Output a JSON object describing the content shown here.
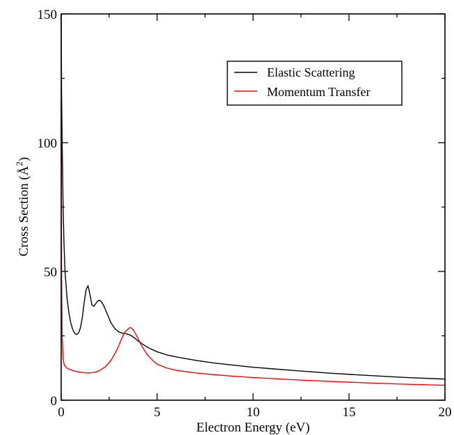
{
  "chart_data": {
    "type": "line",
    "xlabel": "Electron Energy (eV)",
    "ylabel": {
      "text": "Cross Section (",
      "unit": "Å",
      "superscript": "2",
      "close": ")"
    },
    "xlim": [
      0,
      20
    ],
    "ylim": [
      0,
      150
    ],
    "x_ticks": [
      0,
      5,
      10,
      15,
      20
    ],
    "x_tick_labels": [
      "0",
      "5",
      "10",
      "15",
      "20"
    ],
    "y_ticks": [
      0,
      50,
      100,
      150
    ],
    "y_tick_labels": [
      "0",
      "50",
      "100",
      "150"
    ],
    "grid": false,
    "legend_position": "top-right",
    "series": [
      {
        "name": "Elastic Scattering",
        "color": "#000000",
        "x": [
          0.0,
          0.02,
          0.05,
          0.1,
          0.15,
          0.2,
          0.3,
          0.4,
          0.5,
          0.6,
          0.7,
          0.8,
          0.9,
          1.0,
          1.1,
          1.2,
          1.3,
          1.4,
          1.5,
          1.6,
          1.7,
          1.8,
          1.9,
          2.0,
          2.1,
          2.2,
          2.4,
          2.6,
          2.8,
          3.0,
          3.2,
          3.4,
          3.6,
          3.8,
          4.0,
          4.5,
          5.0,
          5.5,
          6.0,
          7.0,
          8.0,
          9.0,
          10.0,
          12.0,
          14.0,
          16.0,
          18.0,
          20.0
        ],
        "values": [
          150,
          120,
          100,
          75,
          60,
          50,
          40,
          34,
          30,
          27.5,
          26,
          25.5,
          26,
          28,
          32,
          38,
          43,
          44.5,
          41,
          37,
          36.5,
          37.5,
          38.5,
          38.8,
          38.2,
          37,
          33.5,
          30,
          27.8,
          26.5,
          26,
          25.8,
          25.3,
          24.3,
          23,
          20.5,
          18.8,
          17.6,
          16.8,
          15.5,
          14.4,
          13.6,
          12.8,
          11.6,
          10.5,
          9.6,
          8.8,
          8.2
        ]
      },
      {
        "name": "Momentum Transfer",
        "color": "#ff0000",
        "x": [
          0.0,
          0.02,
          0.05,
          0.1,
          0.15,
          0.2,
          0.3,
          0.5,
          0.7,
          1.0,
          1.3,
          1.5,
          1.8,
          2.0,
          2.3,
          2.6,
          2.9,
          3.1,
          3.3,
          3.5,
          3.6,
          3.7,
          3.8,
          4.0,
          4.2,
          4.5,
          4.8,
          5.0,
          5.5,
          6.0,
          7.0,
          8.0,
          9.0,
          10.0,
          12.0,
          14.0,
          16.0,
          18.0,
          20.0
        ],
        "values": [
          110,
          50,
          25,
          16,
          14,
          13.2,
          12.5,
          11.8,
          11.3,
          10.9,
          10.6,
          10.6,
          10.9,
          11.5,
          13,
          15.5,
          19.5,
          23,
          26.3,
          27.8,
          28.2,
          27.8,
          26.8,
          24,
          21,
          17.5,
          15.2,
          14,
          12.5,
          11.6,
          10.6,
          9.9,
          9.3,
          8.8,
          8.0,
          7.3,
          6.7,
          6.2,
          5.8
        ]
      }
    ]
  }
}
